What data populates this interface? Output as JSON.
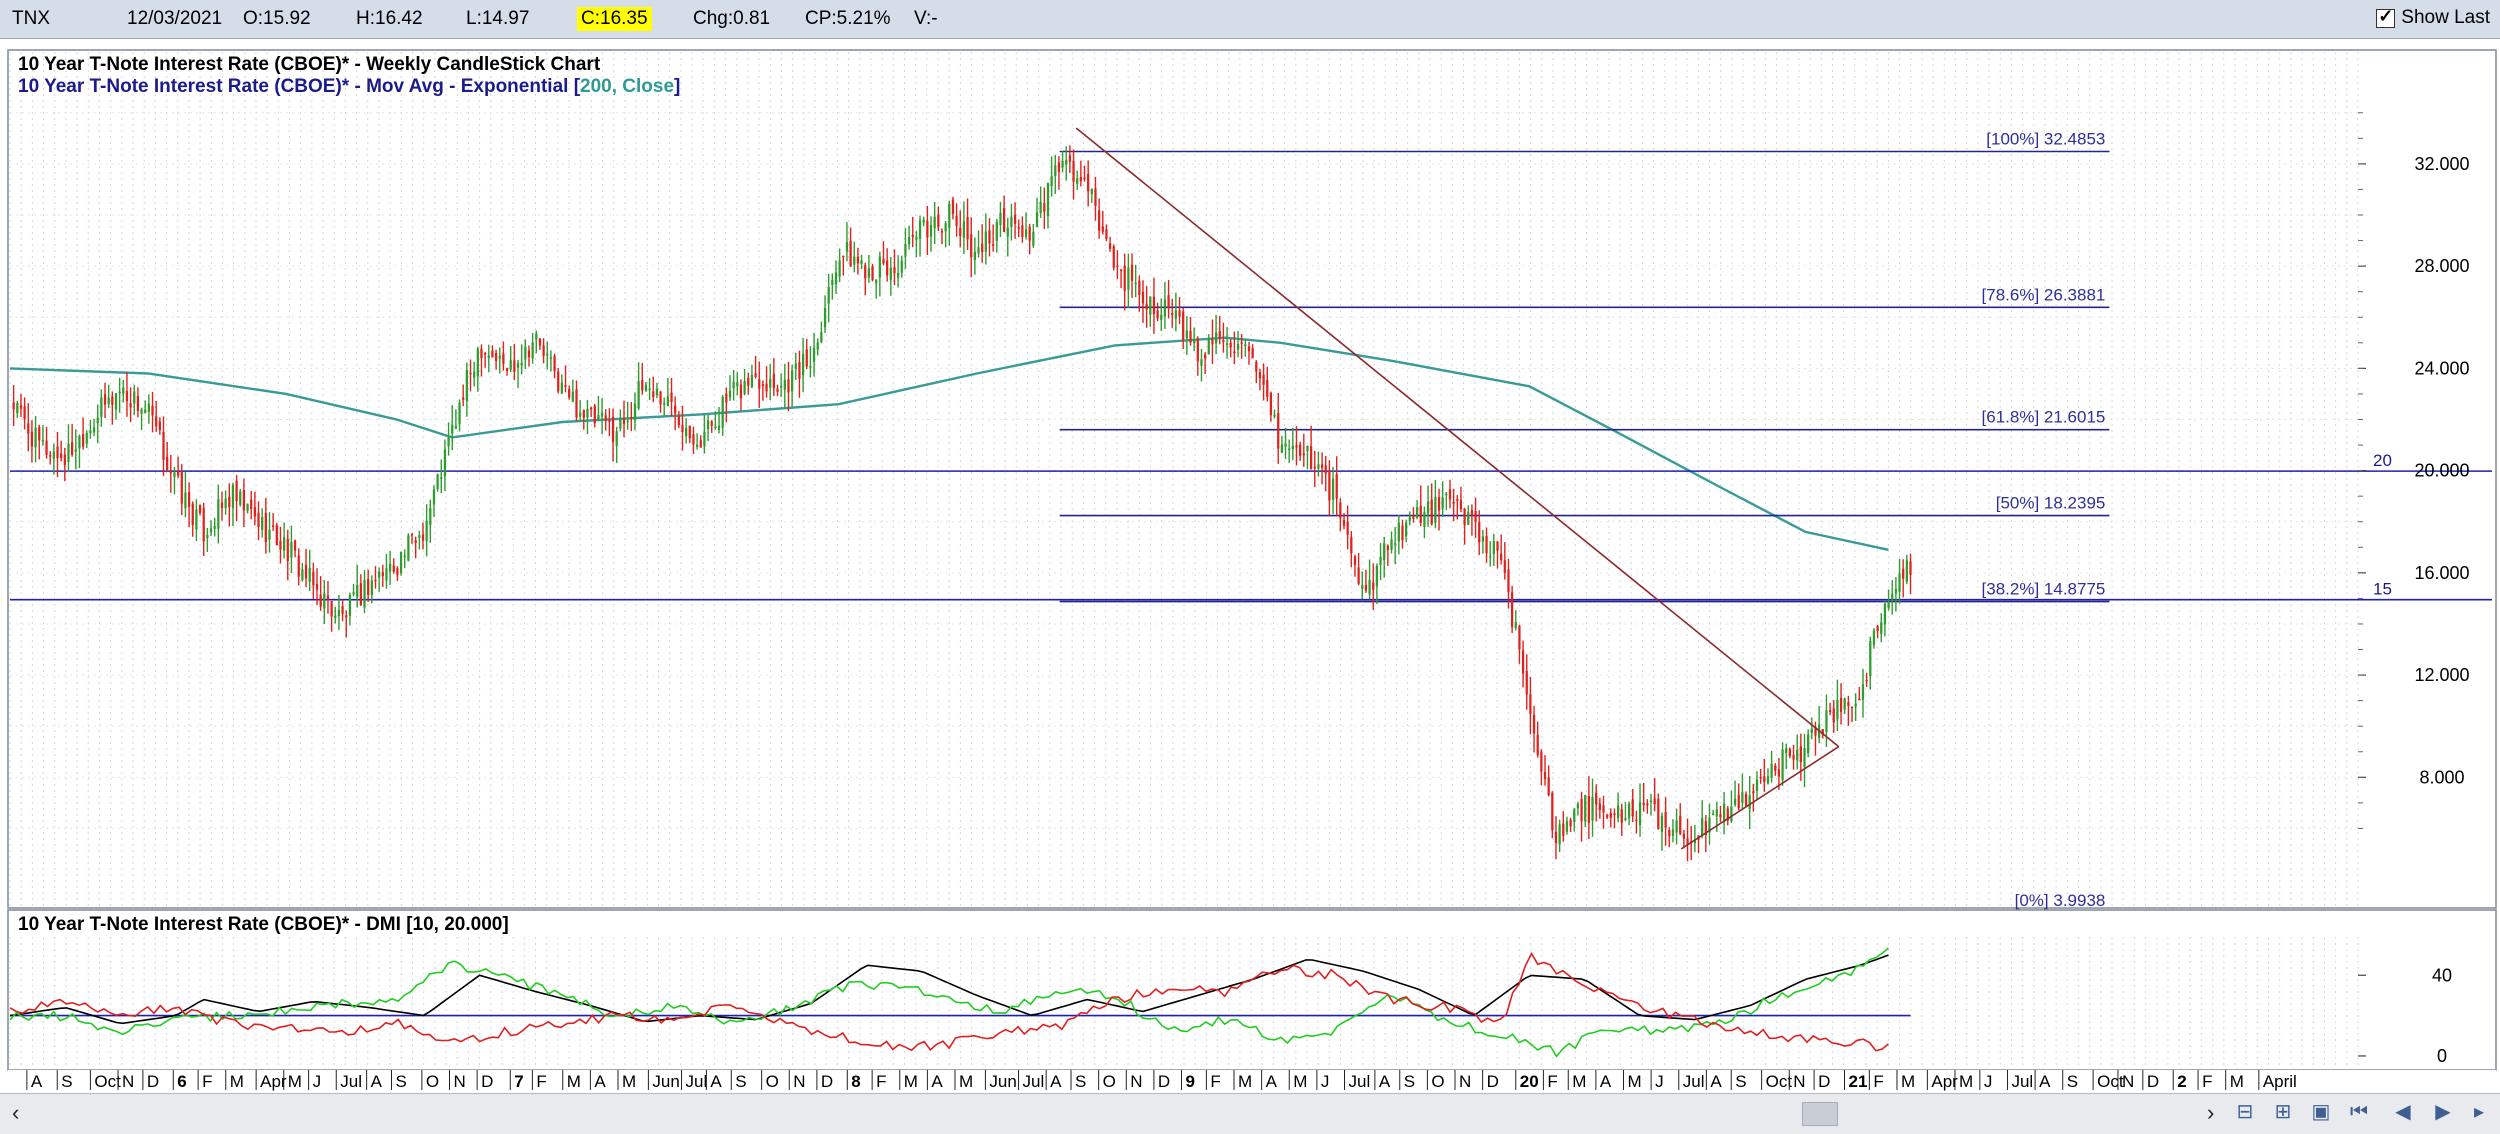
{
  "header": {
    "symbol": "TNX",
    "date": "12/03/2021",
    "open": "O:15.92",
    "high": "H:16.42",
    "low": "L:14.97",
    "close": "C:16.35",
    "change": "Chg:0.81",
    "change_pct": "CP:5.21%",
    "volume": "V:-",
    "show_last_label": "Show Last"
  },
  "colors": {
    "up": "#2e9c2e",
    "down": "#e0211c",
    "ema": "#3a9a96",
    "fib": "#24248c",
    "trend": "#8b2a2a",
    "dmi_plus": "#22cc22",
    "dmi_minus": "#e02020",
    "adx": "#000000",
    "hline": "#1f1fb4"
  },
  "chart_data": [
    {
      "type": "candlestick",
      "title": "10 Year T-Note Interest Rate (CBOE)* - Weekly CandleStick Chart",
      "subtitle_prefix": "10 Year T-Note Interest Rate (CBOE)* - Mov Avg - Exponential [",
      "subtitle_params": "200, Close",
      "subtitle_suffix": "]",
      "ylim": [
        3.2,
        34.5
      ],
      "yticks": [
        8,
        12,
        16,
        20,
        24,
        28,
        32
      ],
      "ytick_labels": [
        "8.000",
        "12.000",
        "16.000",
        "20.000",
        "24.000",
        "28.000",
        "32.000"
      ],
      "xlim": [
        0,
        85
      ],
      "close_path": [
        [
          0,
          22.8
        ],
        [
          1,
          21.0
        ],
        [
          2,
          20.5
        ],
        [
          3,
          22.0
        ],
        [
          4,
          23.2
        ],
        [
          5,
          22.3
        ],
        [
          6,
          19.5
        ],
        [
          7,
          17.6
        ],
        [
          8,
          19.0
        ],
        [
          9,
          18.0
        ],
        [
          10,
          17.0
        ],
        [
          11,
          15.4
        ],
        [
          12,
          14.2
        ],
        [
          13,
          15.6
        ],
        [
          14,
          16.4
        ],
        [
          15,
          17.8
        ],
        [
          16,
          21.5
        ],
        [
          17,
          25.0
        ],
        [
          18,
          24.0
        ],
        [
          19,
          25.2
        ],
        [
          20,
          23.2
        ],
        [
          21,
          22.0
        ],
        [
          22,
          21.6
        ],
        [
          23,
          23.4
        ],
        [
          24,
          22.5
        ],
        [
          25,
          21.2
        ],
        [
          26,
          22.8
        ],
        [
          27,
          23.7
        ],
        [
          28,
          23.4
        ],
        [
          29,
          24.4
        ],
        [
          30,
          28.6
        ],
        [
          31,
          28.0
        ],
        [
          32,
          27.8
        ],
        [
          33,
          29.4
        ],
        [
          34,
          30.0
        ],
        [
          35,
          28.6
        ],
        [
          36,
          29.8
        ],
        [
          37,
          29.2
        ],
        [
          38,
          32.1
        ],
        [
          39,
          31.0
        ],
        [
          40,
          28.0
        ],
        [
          41,
          26.8
        ],
        [
          42,
          26.2
        ],
        [
          43,
          24.5
        ],
        [
          44,
          25.5
        ],
        [
          45,
          24.0
        ],
        [
          46,
          21.0
        ],
        [
          47,
          20.6
        ],
        [
          48,
          19.0
        ],
        [
          49,
          15.0
        ],
        [
          50,
          17.5
        ],
        [
          51,
          18.2
        ],
        [
          52,
          18.7
        ],
        [
          53,
          18.0
        ],
        [
          54,
          16.2
        ],
        [
          55,
          11.0
        ],
        [
          56,
          5.5
        ],
        [
          57,
          6.8
        ],
        [
          58,
          6.4
        ],
        [
          59,
          6.8
        ],
        [
          60,
          6.2
        ],
        [
          61,
          5.6
        ],
        [
          62,
          6.6
        ],
        [
          63,
          7.5
        ],
        [
          64,
          8.5
        ],
        [
          65,
          9.2
        ],
        [
          66,
          10.6
        ],
        [
          67,
          11.5
        ],
        [
          68,
          15.3
        ],
        [
          68.8,
          16.35
        ]
      ],
      "ema200": [
        [
          0,
          24.0
        ],
        [
          5,
          23.8
        ],
        [
          10,
          23.0
        ],
        [
          14,
          22.0
        ],
        [
          16,
          21.3
        ],
        [
          20,
          21.9
        ],
        [
          25,
          22.2
        ],
        [
          30,
          22.6
        ],
        [
          35,
          23.8
        ],
        [
          40,
          24.9
        ],
        [
          44,
          25.2
        ],
        [
          46,
          25.0
        ],
        [
          50,
          24.3
        ],
        [
          55,
          23.3
        ],
        [
          58,
          21.6
        ],
        [
          62,
          19.3
        ],
        [
          65,
          17.6
        ],
        [
          68,
          16.9
        ]
      ],
      "fib_levels": [
        {
          "label": "[100%] 32.4853",
          "value": 32.4853
        },
        {
          "label": "[78.6%] 26.3881",
          "value": 26.3881
        },
        {
          "label": "[61.8%] 21.6015",
          "value": 21.6015
        },
        {
          "label": "[50%] 18.2395",
          "value": 18.2395
        },
        {
          "label": "[38.2%] 14.8775",
          "value": 14.8775
        },
        {
          "label": "[0%] 3.9938",
          "value": 3.9938
        }
      ],
      "fib_x_range": [
        38,
        76
      ],
      "horizontal_lines": [
        {
          "label": "20",
          "value": 19.98
        },
        {
          "label": "15",
          "value": 14.95
        }
      ],
      "trendlines": [
        {
          "x1": 38.6,
          "y1": 33.4,
          "x2": 66.2,
          "y2": 9.2
        },
        {
          "x1": 60.5,
          "y1": 5.2,
          "x2": 66.2,
          "y2": 9.2
        }
      ]
    },
    {
      "type": "line",
      "title": "10 Year T-Note Interest Rate (CBOE)* - DMI [10, 20.000]",
      "ylim": [
        -3,
        55
      ],
      "yticks": [
        0,
        40
      ],
      "ytick_labels": [
        "0",
        "40"
      ],
      "reference_line": 20,
      "series": [
        {
          "key": "adx",
          "values": [
            [
              0,
              20
            ],
            [
              2,
              24
            ],
            [
              4,
              16
            ],
            [
              6,
              20
            ],
            [
              7,
              28
            ],
            [
              9,
              22
            ],
            [
              11,
              27
            ],
            [
              13,
              24
            ],
            [
              15,
              20
            ],
            [
              17,
              40
            ],
            [
              19,
              32
            ],
            [
              21,
              25
            ],
            [
              23,
              17
            ],
            [
              25,
              20
            ],
            [
              27,
              18
            ],
            [
              29,
              26
            ],
            [
              31,
              45
            ],
            [
              33,
              42
            ],
            [
              35,
              30
            ],
            [
              37,
              20
            ],
            [
              39,
              28
            ],
            [
              41,
              22
            ],
            [
              43,
              30
            ],
            [
              45,
              38
            ],
            [
              47,
              48
            ],
            [
              49,
              42
            ],
            [
              51,
              33
            ],
            [
              53,
              20
            ],
            [
              55,
              40
            ],
            [
              57,
              38
            ],
            [
              59,
              20
            ],
            [
              61,
              18
            ],
            [
              63,
              25
            ],
            [
              65,
              38
            ],
            [
              67,
              45
            ],
            [
              68,
              50
            ]
          ]
        },
        {
          "key": "dmi_plus",
          "values": [
            [
              0,
              20
            ],
            [
              2,
              20
            ],
            [
              4,
              12
            ],
            [
              6,
              18
            ],
            [
              8,
              20
            ],
            [
              10,
              22
            ],
            [
              12,
              26
            ],
            [
              14,
              28
            ],
            [
              16,
              46
            ],
            [
              18,
              38
            ],
            [
              20,
              30
            ],
            [
              22,
              20
            ],
            [
              24,
              24
            ],
            [
              26,
              16
            ],
            [
              28,
              22
            ],
            [
              30,
              34
            ],
            [
              32,
              36
            ],
            [
              34,
              28
            ],
            [
              36,
              22
            ],
            [
              38,
              32
            ],
            [
              40,
              30
            ],
            [
              42,
              12
            ],
            [
              44,
              18
            ],
            [
              46,
              8
            ],
            [
              48,
              12
            ],
            [
              50,
              30
            ],
            [
              52,
              18
            ],
            [
              54,
              10
            ],
            [
              56,
              2
            ],
            [
              58,
              14
            ],
            [
              60,
              12
            ],
            [
              62,
              16
            ],
            [
              64,
              30
            ],
            [
              66,
              38
            ],
            [
              68,
              52
            ]
          ]
        },
        {
          "key": "dmi_minus",
          "values": [
            [
              0,
              22
            ],
            [
              2,
              26
            ],
            [
              4,
              20
            ],
            [
              6,
              24
            ],
            [
              8,
              16
            ],
            [
              10,
              14
            ],
            [
              12,
              12
            ],
            [
              14,
              16
            ],
            [
              16,
              6
            ],
            [
              18,
              12
            ],
            [
              20,
              16
            ],
            [
              22,
              20
            ],
            [
              24,
              18
            ],
            [
              26,
              24
            ],
            [
              28,
              16
            ],
            [
              30,
              10
            ],
            [
              32,
              4
            ],
            [
              34,
              6
            ],
            [
              36,
              12
            ],
            [
              38,
              14
            ],
            [
              40,
              28
            ],
            [
              42,
              34
            ],
            [
              44,
              32
            ],
            [
              46,
              44
            ],
            [
              48,
              40
            ],
            [
              50,
              28
            ],
            [
              52,
              24
            ],
            [
              54,
              16
            ],
            [
              55,
              50
            ],
            [
              57,
              36
            ],
            [
              59,
              24
            ],
            [
              61,
              18
            ],
            [
              63,
              12
            ],
            [
              65,
              8
            ],
            [
              67,
              6
            ],
            [
              68,
              4
            ]
          ]
        }
      ]
    }
  ],
  "x_axis": {
    "labels": [
      {
        "t": "A",
        "x": 0.9
      },
      {
        "t": "S",
        "x": 2.0
      },
      {
        "t": "Oct",
        "x": 3.2
      },
      {
        "t": "N",
        "x": 4.2
      },
      {
        "t": "D",
        "x": 5.1
      },
      {
        "t": "6",
        "x": 6.2,
        "bold": true
      },
      {
        "t": "F",
        "x": 7.1
      },
      {
        "t": "M",
        "x": 8.1
      },
      {
        "t": "Apr",
        "x": 9.2
      },
      {
        "t": "M",
        "x": 10.2
      },
      {
        "t": "J",
        "x": 11.1
      },
      {
        "t": "Jul",
        "x": 12.1
      },
      {
        "t": "A",
        "x": 13.2
      },
      {
        "t": "S",
        "x": 14.1
      },
      {
        "t": "O",
        "x": 15.2
      },
      {
        "t": "N",
        "x": 16.2
      },
      {
        "t": "D",
        "x": 17.2
      },
      {
        "t": "7",
        "x": 18.4,
        "bold": true
      },
      {
        "t": "F",
        "x": 19.2
      },
      {
        "t": "M",
        "x": 20.3
      },
      {
        "t": "A",
        "x": 21.3
      },
      {
        "t": "M",
        "x": 22.3
      },
      {
        "t": "Jun",
        "x": 23.4
      },
      {
        "t": "Jul",
        "x": 24.6
      },
      {
        "t": "A",
        "x": 25.5
      },
      {
        "t": "S",
        "x": 26.4
      },
      {
        "t": "O",
        "x": 27.5
      },
      {
        "t": "N",
        "x": 28.5
      },
      {
        "t": "D",
        "x": 29.5
      },
      {
        "t": "8",
        "x": 30.6,
        "bold": true
      },
      {
        "t": "F",
        "x": 31.5
      },
      {
        "t": "M",
        "x": 32.5
      },
      {
        "t": "A",
        "x": 33.5
      },
      {
        "t": "M",
        "x": 34.5
      },
      {
        "t": "Jun",
        "x": 35.6
      },
      {
        "t": "Jul",
        "x": 36.8
      },
      {
        "t": "A",
        "x": 37.8
      },
      {
        "t": "S",
        "x": 38.7
      },
      {
        "t": "O",
        "x": 39.7
      },
      {
        "t": "N",
        "x": 40.7
      },
      {
        "t": "D",
        "x": 41.7
      },
      {
        "t": "9",
        "x": 42.7,
        "bold": true
      },
      {
        "t": "F",
        "x": 43.6
      },
      {
        "t": "M",
        "x": 44.6
      },
      {
        "t": "A",
        "x": 45.6
      },
      {
        "t": "M",
        "x": 46.6
      },
      {
        "t": "J",
        "x": 47.6
      },
      {
        "t": "Jul",
        "x": 48.6
      },
      {
        "t": "A",
        "x": 49.7
      },
      {
        "t": "S",
        "x": 50.6
      },
      {
        "t": "O",
        "x": 51.6
      },
      {
        "t": "N",
        "x": 52.6
      },
      {
        "t": "D",
        "x": 53.6
      },
      {
        "t": "20",
        "x": 54.8,
        "bold": true
      },
      {
        "t": "F",
        "x": 55.8
      },
      {
        "t": "M",
        "x": 56.7
      },
      {
        "t": "A",
        "x": 57.7
      },
      {
        "t": "M",
        "x": 58.7
      },
      {
        "t": "J",
        "x": 59.7
      },
      {
        "t": "Jul",
        "x": 60.7
      },
      {
        "t": "A",
        "x": 61.7
      },
      {
        "t": "S",
        "x": 62.6
      },
      {
        "t": "Oct",
        "x": 63.7
      },
      {
        "t": "N",
        "x": 64.7
      },
      {
        "t": "D",
        "x": 65.6
      },
      {
        "t": "21",
        "x": 66.7,
        "bold": true
      },
      {
        "t": "F",
        "x": 67.6
      },
      {
        "t": "M",
        "x": 68.6
      },
      {
        "t": "Apr",
        "x": 69.7
      },
      {
        "t": "M",
        "x": 70.7
      },
      {
        "t": "J",
        "x": 71.6
      },
      {
        "t": "Jul",
        "x": 72.6
      },
      {
        "t": "A",
        "x": 73.6
      },
      {
        "t": "S",
        "x": 74.6
      },
      {
        "t": "Oct",
        "x": 75.7
      },
      {
        "t": "N",
        "x": 76.6
      },
      {
        "t": "D",
        "x": 77.5
      },
      {
        "t": "2",
        "x": 78.6,
        "bold": true
      },
      {
        "t": "F",
        "x": 79.5
      },
      {
        "t": "M",
        "x": 80.5
      },
      {
        "t": "April",
        "x": 81.7
      }
    ]
  },
  "toolbar": {
    "icons": [
      "zoom-out-icon",
      "zoom-in-icon",
      "fit-icon",
      "scroll-first-icon",
      "scroll-left-icon",
      "scroll-right-icon"
    ]
  }
}
